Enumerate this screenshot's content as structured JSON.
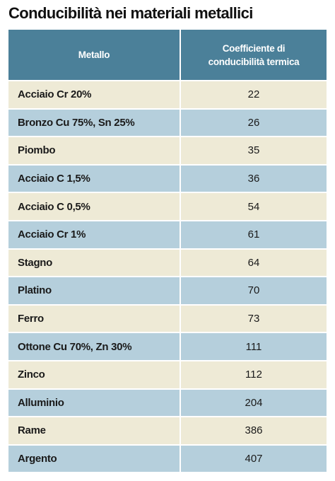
{
  "title": "Conducibilità nei materiali metallici",
  "table": {
    "header": [
      "Metallo",
      "Coefficiente di conducibilità termica"
    ],
    "rows": [
      [
        "Acciaio Cr 20%",
        22
      ],
      [
        "Bronzo Cu 75%, Sn 25%",
        26
      ],
      [
        "Piombo",
        35
      ],
      [
        "Acciaio C 1,5%",
        36
      ],
      [
        "Acciaio C 0,5%",
        54
      ],
      [
        "Acciaio Cr 1%",
        61
      ],
      [
        "Stagno",
        64
      ],
      [
        "Platino",
        70
      ],
      [
        "Ferro",
        73
      ],
      [
        "Ottone Cu 70%, Zn 30%",
        111
      ],
      [
        "Zinco",
        112
      ],
      [
        "Alluminio",
        204
      ],
      [
        "Rame",
        386
      ],
      [
        "Argento",
        407
      ]
    ]
  }
}
